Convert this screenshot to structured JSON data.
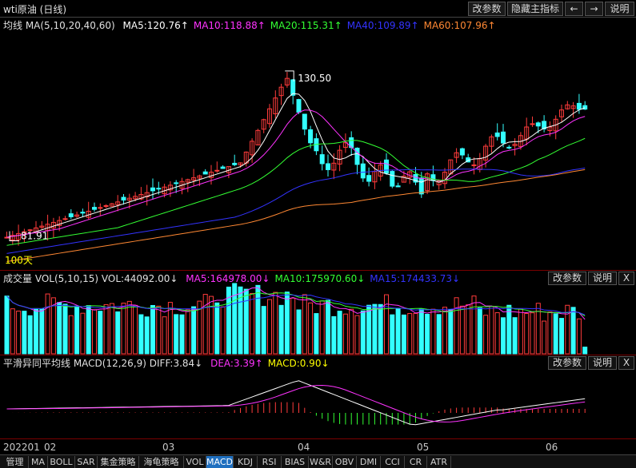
{
  "header": {
    "title": "wti原油 (日线)",
    "buttons": [
      "改参数",
      "隐藏主指标",
      "←",
      "→",
      "说明"
    ]
  },
  "main_legend": {
    "prefix": "均线 MA(5,10,20,40,60)",
    "items": [
      {
        "text": "MA5:120.76↑",
        "color": "#ffffff"
      },
      {
        "text": "MA10:118.88↑",
        "color": "#ff33ff"
      },
      {
        "text": "MA20:115.31↑",
        "color": "#33ff33"
      },
      {
        "text": "MA40:109.89↑",
        "color": "#3333ff"
      },
      {
        "text": "MA60:107.96↑",
        "color": "#ff8833"
      }
    ],
    "high_label": "130.50",
    "low_label": "81.91",
    "range_label": "100天"
  },
  "vol_legend": {
    "prefix": "成交量 VOL(5,10,15) VOL:44092.00↓",
    "items": [
      {
        "text": "MA5:164978.00↓",
        "color": "#ff33ff"
      },
      {
        "text": "MA10:175970.60↓",
        "color": "#33ff33"
      },
      {
        "text": "MA15:174433.73↓",
        "color": "#3333ff"
      }
    ],
    "buttons": [
      "改参数",
      "说明",
      "X"
    ]
  },
  "macd_legend": {
    "prefix": "平滑异同平均线 MACD(12,26,9) DIFF:3.84↓",
    "items": [
      {
        "text": "DEA:3.39↑",
        "color": "#ff33ff"
      },
      {
        "text": "MACD:0.90↓",
        "color": "#ffff00"
      }
    ],
    "buttons": [
      "改参数",
      "说明",
      "X"
    ]
  },
  "xaxis": {
    "labels": [
      "202201",
      "02",
      "03",
      "04",
      "05",
      "06"
    ]
  },
  "tabs": [
    "管理",
    "MA",
    "BOLL",
    "SAR",
    "集金策略",
    "海龟策略",
    "VOL",
    "MACD",
    "KDJ",
    "RSI",
    "BIAS",
    "W&R",
    "OBV",
    "DMI",
    "CCI",
    "CR",
    "ATR"
  ],
  "active_tab": "MACD",
  "colors": {
    "up": "#ff3b3b",
    "down": "#33ffff",
    "grid_border": "#7a0000"
  }
}
